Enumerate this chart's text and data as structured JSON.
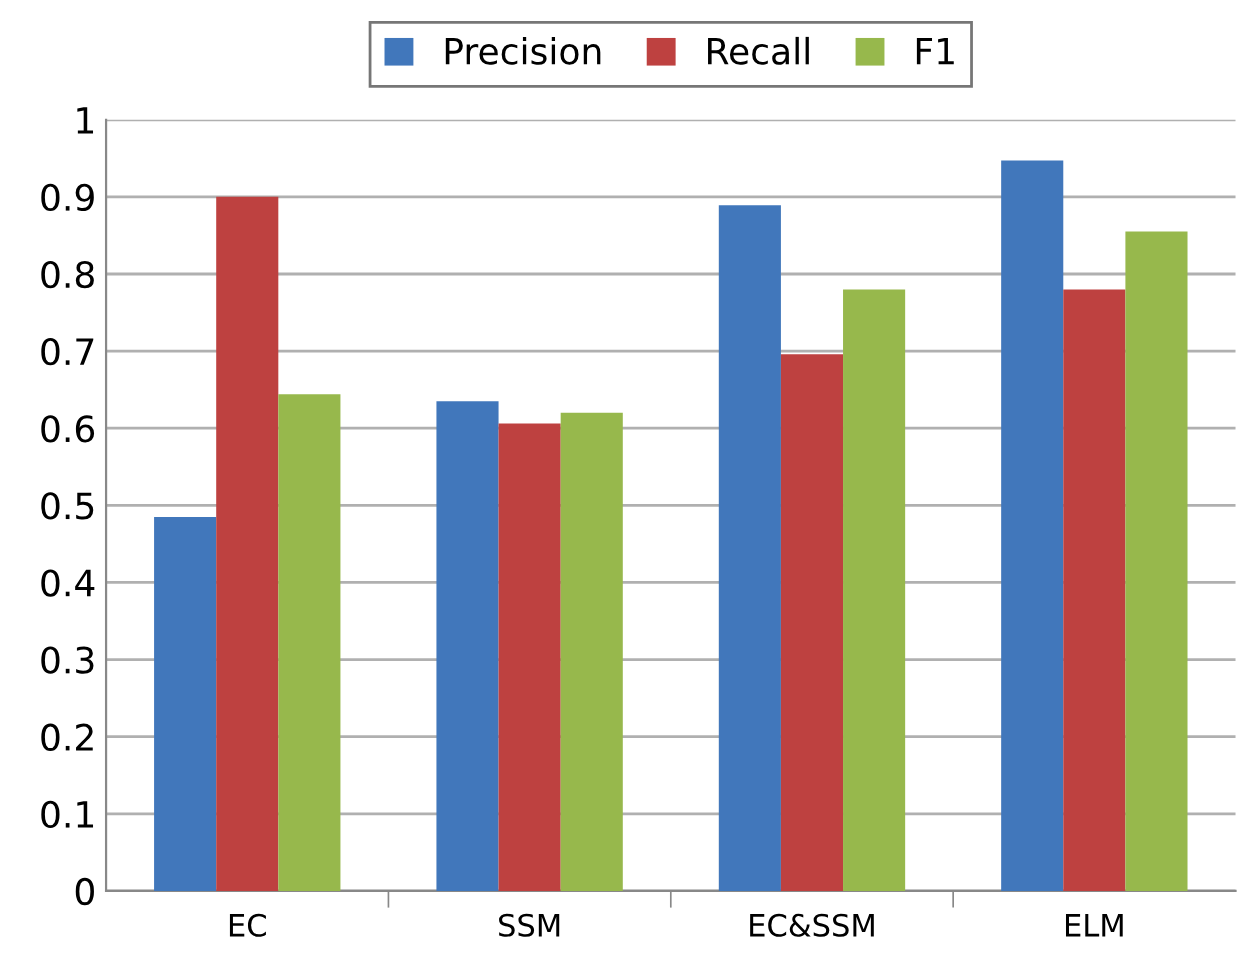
{
  "chart_data": {
    "type": "bar",
    "categories": [
      "EC",
      "SSM",
      "EC&SSM",
      "ELM"
    ],
    "series": [
      {
        "name": "Precision",
        "color": "#4177bb",
        "values": [
          0.485,
          0.635,
          0.889,
          0.947
        ]
      },
      {
        "name": "Recall",
        "color": "#be4140",
        "values": [
          0.9,
          0.606,
          0.696,
          0.78
        ]
      },
      {
        "name": "F1",
        "color": "#97b84c",
        "values": [
          0.644,
          0.62,
          0.78,
          0.855
        ]
      }
    ],
    "ylim": [
      0,
      1
    ],
    "yticks": [
      0,
      0.1,
      0.2,
      0.3,
      0.4,
      0.5,
      0.6,
      0.7,
      0.8,
      0.9,
      1
    ],
    "grid": "y",
    "legend": "top"
  }
}
